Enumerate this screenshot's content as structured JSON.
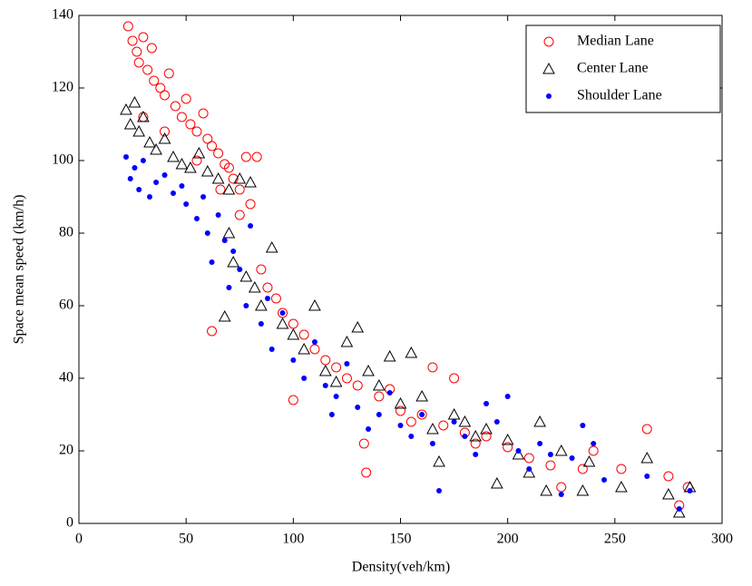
{
  "chart_data": {
    "type": "scatter",
    "xlabel": "Density(veh/km)",
    "ylabel": "Space mean speed (km/h)",
    "xlim": [
      0,
      300
    ],
    "ylim": [
      0,
      140
    ],
    "xticks": [
      0,
      50,
      100,
      150,
      200,
      250,
      300
    ],
    "yticks": [
      0,
      20,
      40,
      60,
      80,
      100,
      120,
      140
    ],
    "legend": "upper right",
    "series": [
      {
        "name": "Median Lane",
        "color": "#ff0000",
        "marker": "circle",
        "x": [
          23,
          25,
          27,
          28,
          30,
          32,
          34,
          35,
          38,
          40,
          42,
          45,
          48,
          50,
          52,
          55,
          58,
          60,
          62,
          65,
          68,
          70,
          72,
          75,
          78,
          80,
          83,
          62,
          85,
          88,
          92,
          95,
          100,
          100,
          105,
          110,
          115,
          120,
          125,
          130,
          133,
          134,
          140,
          145,
          150,
          155,
          160,
          165,
          170,
          175,
          180,
          185,
          190,
          200,
          210,
          220,
          225,
          235,
          240,
          253,
          265,
          275,
          280,
          284,
          30,
          40,
          55,
          66,
          75
        ],
        "y": [
          137,
          133,
          130,
          127,
          134,
          125,
          131,
          122,
          120,
          118,
          124,
          115,
          112,
          117,
          110,
          108,
          113,
          106,
          104,
          102,
          99,
          98,
          95,
          92,
          101,
          88,
          101,
          53,
          70,
          65,
          62,
          58,
          34,
          55,
          52,
          48,
          45,
          43,
          40,
          38,
          22,
          14,
          35,
          37,
          31,
          28,
          30,
          43,
          27,
          40,
          25,
          22,
          24,
          21,
          18,
          16,
          10,
          15,
          20,
          15,
          26,
          13,
          5,
          10,
          112,
          108,
          100,
          92,
          85
        ]
      },
      {
        "name": "Center Lane",
        "color": "#000000",
        "marker": "triangle",
        "x": [
          22,
          24,
          26,
          28,
          30,
          33,
          36,
          40,
          44,
          48,
          52,
          56,
          60,
          65,
          70,
          75,
          80,
          70,
          72,
          68,
          78,
          82,
          85,
          90,
          95,
          100,
          105,
          110,
          115,
          120,
          125,
          130,
          135,
          140,
          145,
          150,
          155,
          160,
          165,
          168,
          175,
          180,
          185,
          190,
          195,
          200,
          205,
          210,
          215,
          218,
          225,
          235,
          238,
          253,
          265,
          275,
          280,
          285
        ],
        "y": [
          114,
          110,
          116,
          108,
          112,
          105,
          103,
          106,
          101,
          99,
          98,
          102,
          97,
          95,
          92,
          95,
          94,
          80,
          72,
          57,
          68,
          65,
          60,
          76,
          55,
          52,
          48,
          60,
          42,
          39,
          50,
          54,
          42,
          38,
          46,
          33,
          47,
          35,
          26,
          17,
          30,
          28,
          24,
          26,
          11,
          23,
          19,
          14,
          28,
          9,
          20,
          9,
          17,
          10,
          18,
          8,
          3,
          10
        ]
      },
      {
        "name": "Shoulder Lane",
        "color": "#0000ff",
        "marker": "dot",
        "x": [
          22,
          24,
          26,
          28,
          30,
          33,
          36,
          40,
          44,
          48,
          50,
          55,
          58,
          60,
          62,
          65,
          68,
          70,
          72,
          75,
          78,
          80,
          85,
          88,
          90,
          95,
          100,
          105,
          110,
          115,
          118,
          120,
          125,
          130,
          135,
          140,
          145,
          150,
          155,
          160,
          165,
          168,
          175,
          180,
          185,
          190,
          195,
          200,
          205,
          210,
          215,
          220,
          225,
          230,
          235,
          240,
          245,
          265,
          280,
          285
        ],
        "y": [
          101,
          95,
          98,
          92,
          100,
          90,
          94,
          96,
          91,
          93,
          88,
          84,
          90,
          80,
          72,
          85,
          78,
          65,
          75,
          70,
          60,
          82,
          55,
          62,
          48,
          58,
          45,
          40,
          50,
          38,
          30,
          35,
          44,
          32,
          26,
          30,
          36,
          27,
          24,
          30,
          22,
          9,
          28,
          24,
          19,
          33,
          28,
          35,
          20,
          15,
          22,
          19,
          8,
          18,
          27,
          22,
          12,
          13,
          4,
          9
        ]
      }
    ]
  }
}
